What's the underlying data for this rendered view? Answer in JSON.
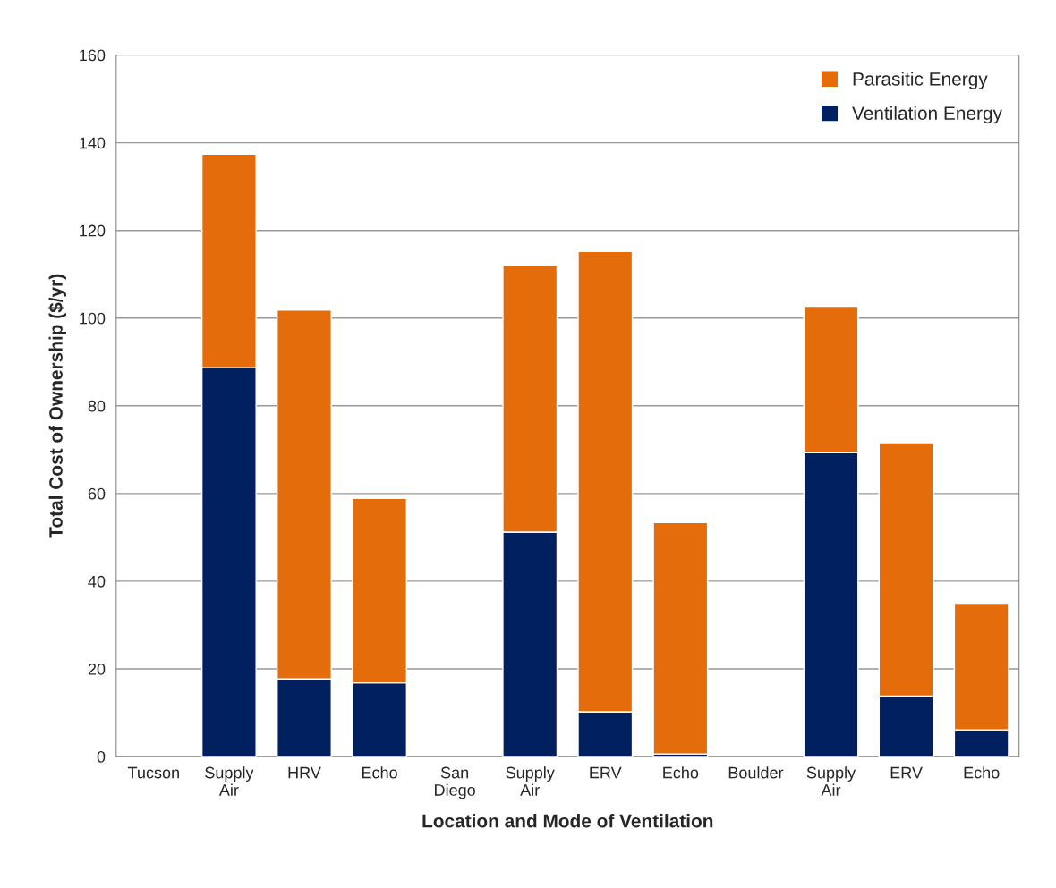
{
  "chart_data": {
    "type": "bar",
    "stacked": true,
    "xlabel": "Location and Mode of Ventilation",
    "ylabel": "Total Cost of Ownership ($/yr)",
    "categories": [
      "Tucson",
      "Supply\nAir",
      "HRV",
      "Echo",
      "San\nDiego",
      "Supply\nAir",
      "ERV",
      "Echo",
      "Boulder",
      "Supply\nAir",
      "ERV",
      "Echo"
    ],
    "series": [
      {
        "name": "Ventilation Energy",
        "color": "#002060",
        "values": [
          null,
          88.7,
          17.7,
          16.8,
          null,
          51.2,
          10.2,
          0.6,
          null,
          69.3,
          13.8,
          6.1
        ]
      },
      {
        "name": "Parasitic Energy",
        "color": "#e46c0a",
        "values": [
          null,
          48.7,
          84.1,
          42.1,
          null,
          60.9,
          105.0,
          52.8,
          null,
          33.4,
          57.8,
          28.9
        ]
      }
    ],
    "ylim": [
      0,
      160
    ],
    "yticks": [
      0,
      20,
      40,
      60,
      80,
      100,
      120,
      140,
      160
    ],
    "grid": "y",
    "legend": "top right"
  }
}
